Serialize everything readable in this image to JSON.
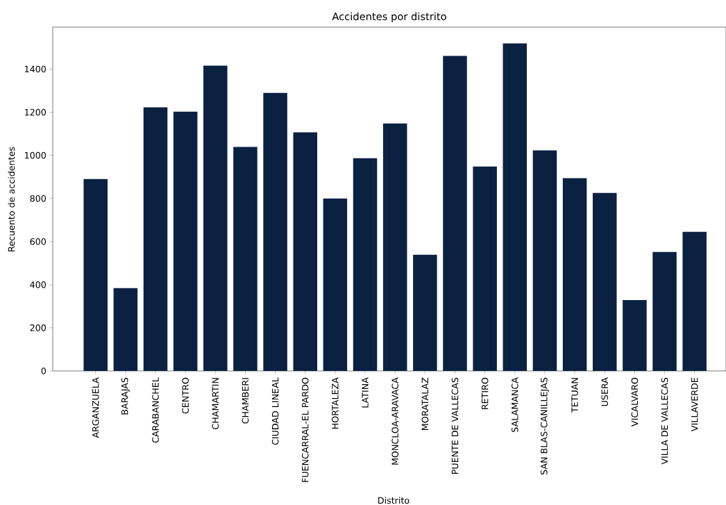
{
  "chart_data": {
    "type": "bar",
    "title": "Accidentes por distrito",
    "xlabel": "Distrito",
    "ylabel": "Recuento de accidentes",
    "categories": [
      "ARGANZUELA",
      "BARAJAS",
      "CARABANCHEL",
      "CENTRO",
      "CHAMARTIN",
      "CHAMBERI",
      "CIUDAD LINEAL",
      "FUENCARRAL-EL PARDO",
      "HORTALEZA",
      "LATINA",
      "MONCLOA-ARAVACA",
      "MORATALAZ",
      "PUENTE DE VALLECAS",
      "RETIRO",
      "SALAMANCA",
      "SAN BLAS-CANILLEJAS",
      "TETUAN",
      "USERA",
      "VICALVARO",
      "VILLA DE VALLECAS",
      "VILLAVERDE"
    ],
    "values": [
      890,
      384,
      1223,
      1203,
      1416,
      1039,
      1290,
      1107,
      800,
      987,
      1148,
      539,
      1461,
      948,
      1519,
      1023,
      894,
      826,
      329,
      552,
      645
    ],
    "color": "#0b2142",
    "ylim": [
      0,
      1595
    ],
    "yticks": [
      0,
      200,
      400,
      600,
      800,
      1000,
      1200,
      1400
    ],
    "grid": false
  }
}
